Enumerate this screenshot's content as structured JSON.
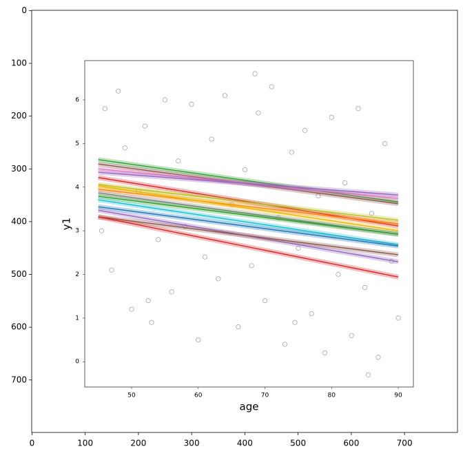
{
  "chart_data": [
    {
      "type": "image",
      "xlim": [
        -0.5,
        799.5
      ],
      "ylim": [
        799.5,
        -0.5
      ],
      "xticks": [
        0,
        100,
        200,
        300,
        400,
        500,
        600,
        700
      ],
      "yticks": [
        0,
        100,
        200,
        300,
        400,
        500,
        600,
        700
      ]
    },
    {
      "type": "line",
      "xlabel": "age",
      "ylabel": "y1",
      "xlim": [
        42.97,
        92.27
      ],
      "ylim": [
        -0.58,
        6.9
      ],
      "xticks": [
        50,
        60,
        70,
        80,
        90
      ],
      "yticks": [
        0,
        1,
        2,
        3,
        4,
        5,
        6
      ],
      "x": [
        45,
        90
      ],
      "series": [
        {
          "type": "scatter",
          "color": "#000000",
          "x": [
            46,
            47,
            48,
            49,
            50,
            51,
            52,
            53,
            54,
            55,
            56,
            57,
            58,
            59,
            60,
            61,
            62,
            63,
            64,
            65,
            66,
            67,
            68,
            69,
            70,
            71,
            72,
            73,
            74,
            75,
            76,
            77,
            78,
            79,
            80,
            81,
            82,
            83,
            84,
            85,
            86,
            87,
            88,
            89,
            45.5,
            68.5,
            85.5,
            90,
            52.5,
            74.5
          ],
          "values": [
            5.8,
            2.1,
            6.2,
            4.9,
            1.2,
            3.9,
            5.4,
            0.9,
            2.8,
            6.0,
            1.6,
            4.6,
            3.1,
            5.9,
            0.5,
            2.4,
            5.1,
            1.9,
            6.1,
            3.6,
            0.8,
            4.4,
            2.2,
            5.7,
            1.4,
            6.3,
            3.3,
            0.4,
            4.8,
            2.6,
            5.3,
            1.1,
            3.8,
            0.2,
            5.6,
            2.0,
            4.1,
            0.6,
            5.8,
            1.7,
            3.4,
            0.1,
            5.0,
            2.3,
            3.0,
            6.6,
            -0.3,
            1.0,
            1.4,
            0.9
          ]
        },
        {
          "color": "#2ca02c",
          "values": [
            4.63,
            3.66
          ]
        },
        {
          "color": "#8c564b",
          "values": [
            4.53,
            3.62
          ]
        },
        {
          "color": "#e377c2",
          "values": [
            4.42,
            3.74
          ]
        },
        {
          "color": "#9467bd",
          "values": [
            4.34,
            3.82
          ]
        },
        {
          "color": "#d62728",
          "values": [
            4.22,
            3.11
          ]
        },
        {
          "color": "#bcbd22",
          "values": [
            4.06,
            3.24
          ]
        },
        {
          "color": "#ff7f0e",
          "values": [
            3.95,
            3.16
          ]
        },
        {
          "color": "#e6b800",
          "values": [
            4.03,
            3.0
          ]
        },
        {
          "color": "#7f7f7f",
          "values": [
            3.87,
            2.92
          ]
        },
        {
          "color": "#2ca02c",
          "values": [
            3.79,
            2.92
          ]
        },
        {
          "color": "#17becf",
          "values": [
            3.71,
            2.68
          ]
        },
        {
          "color": "#1f77b4",
          "values": [
            3.55,
            2.65
          ]
        },
        {
          "color": "#9467bd",
          "values": [
            3.47,
            2.29
          ]
        },
        {
          "color": "#8c564b",
          "values": [
            3.32,
            2.45
          ]
        },
        {
          "color": "#d62728",
          "values": [
            3.32,
            1.94
          ]
        }
      ]
    }
  ]
}
